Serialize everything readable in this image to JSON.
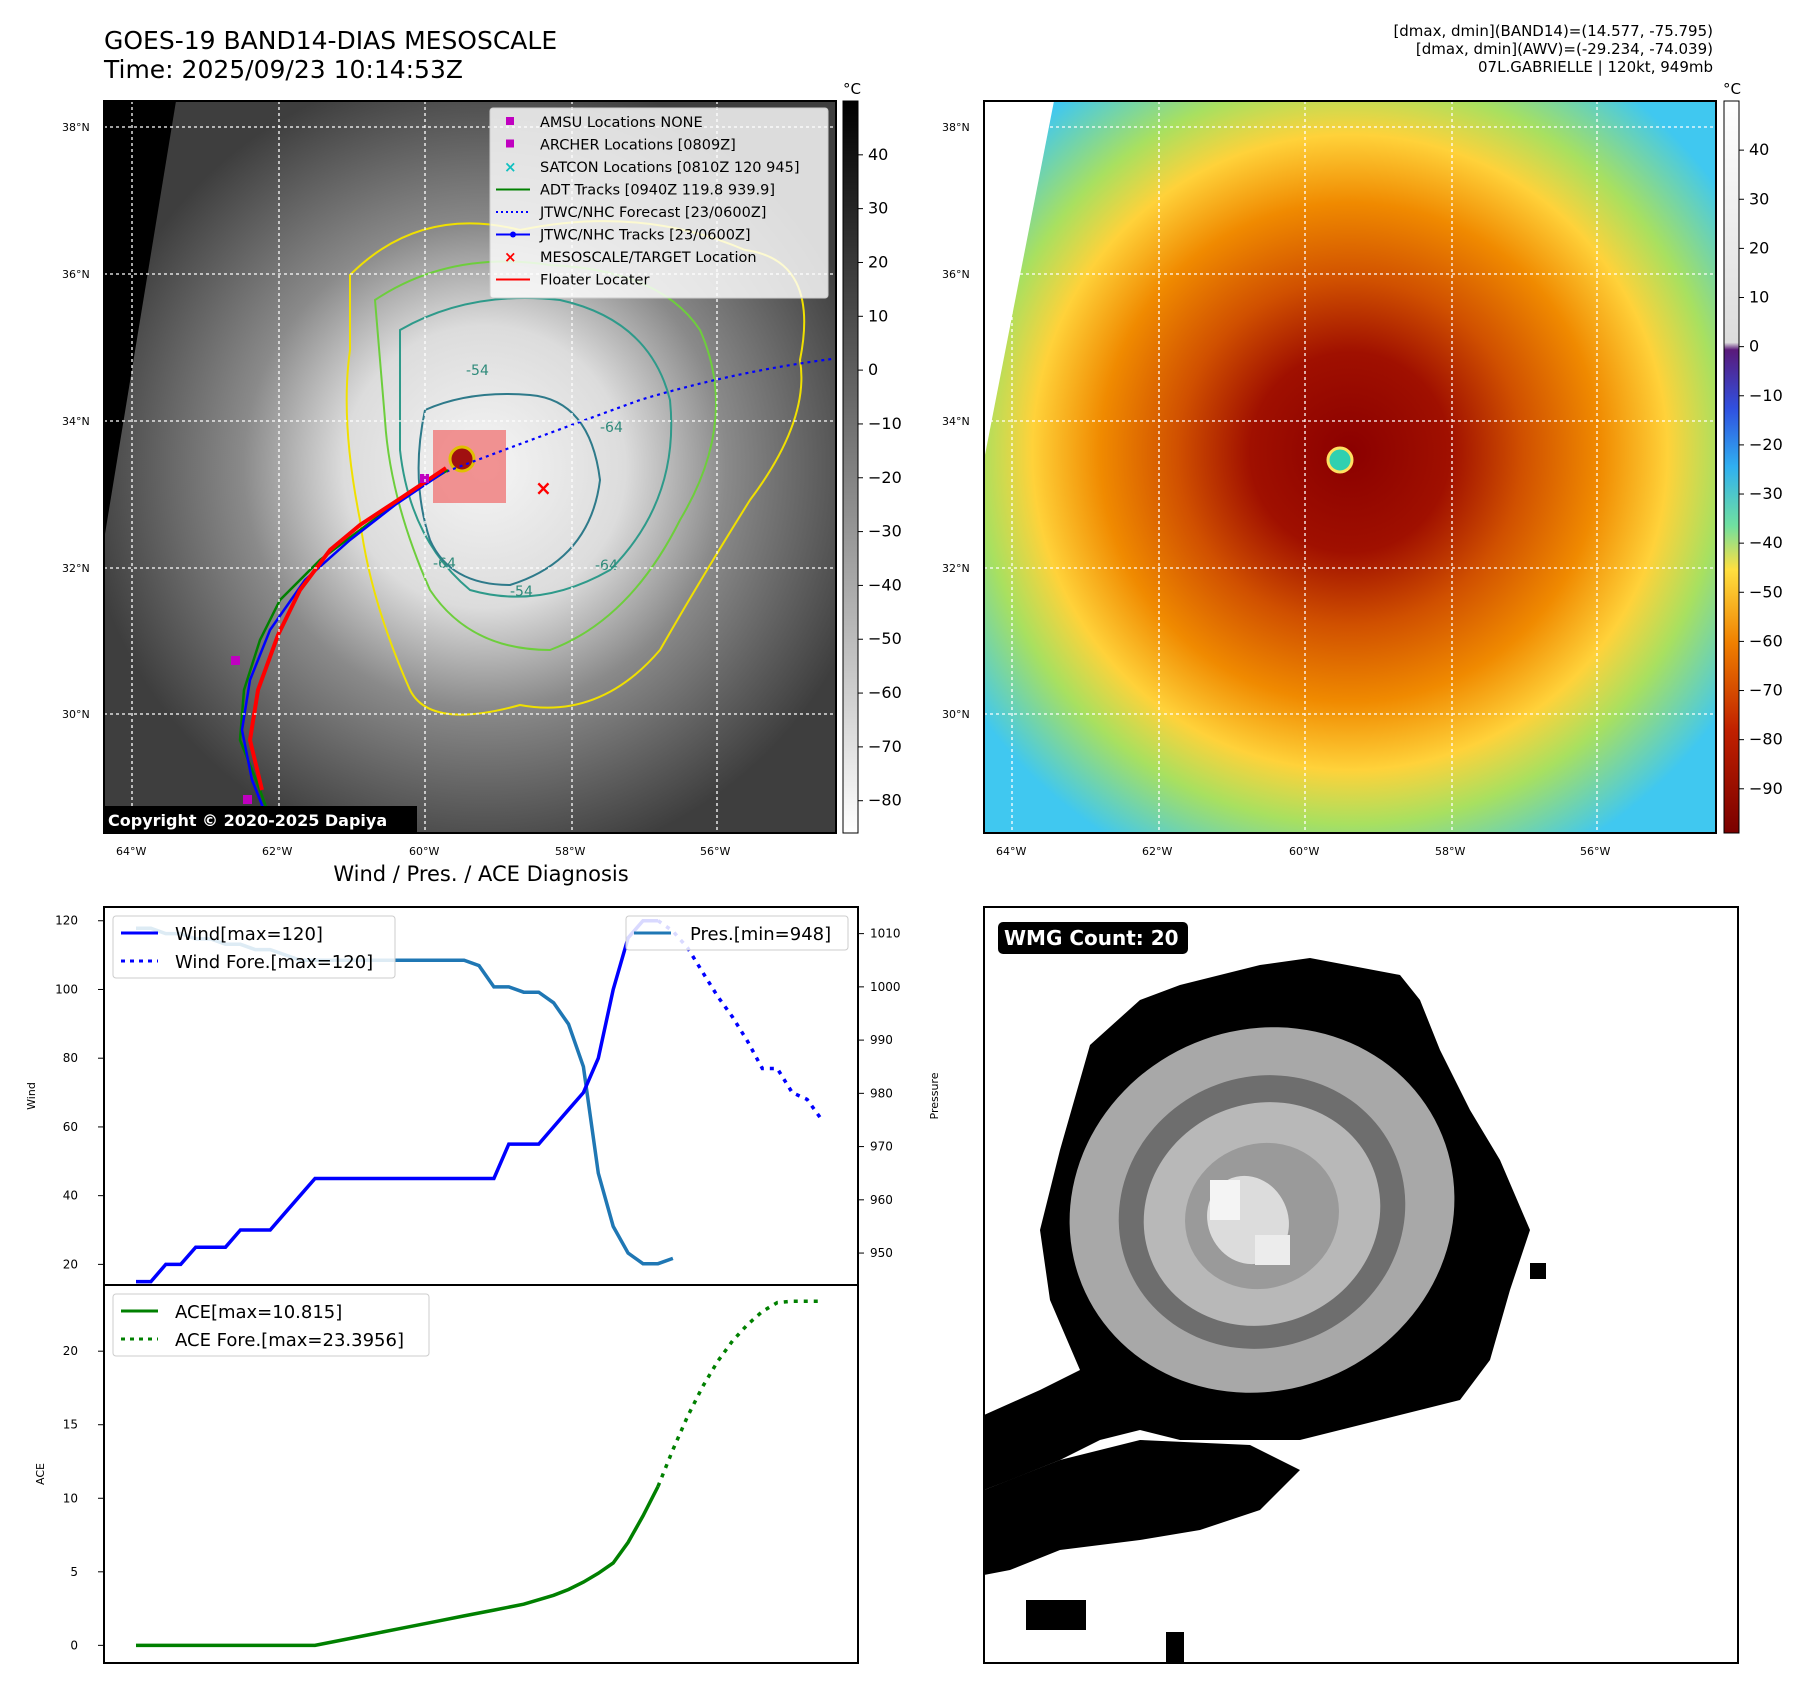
{
  "header": {
    "title_line1": "GOES-19 BAND14-DIAS MESOSCALE",
    "title_line2": "Time: 2025/09/23 10:14:53Z",
    "info_line1": "[dmax, dmin](BAND14)=(14.577, -75.795)",
    "info_line2": "[dmax, dmin](AWV)=(-29.234, -74.039)",
    "info_line3": "07L.GABRIELLE | 120kt, 949mb"
  },
  "maps": {
    "lat_labels": [
      "38°N",
      "36°N",
      "34°N",
      "32°N",
      "30°N"
    ],
    "lon_labels": [
      "64°W",
      "62°W",
      "60°W",
      "58°W",
      "56°W"
    ],
    "contour_labels": [
      "-54",
      "-64",
      "-54",
      "-64",
      "-64"
    ],
    "copyright": "Copyright © 2020-2025 Dapiya",
    "legend": [
      {
        "label": "AMSU Locations NONE",
        "color": "#c000c0",
        "symbol": "square"
      },
      {
        "label": "ARCHER Locations [0809Z]",
        "color": "#c000c0",
        "symbol": "square"
      },
      {
        "label": "SATCON Locations [0810Z 120 945]",
        "color": "#10c0c0",
        "symbol": "x"
      },
      {
        "label": "ADT Tracks [0940Z 119.8 939.9]",
        "color": "#008000",
        "symbol": "line"
      },
      {
        "label": "JTWC/NHC Forecast [23/0600Z]",
        "color": "#0000ff",
        "symbol": "dotted"
      },
      {
        "label": "JTWC/NHC Tracks [23/0600Z]",
        "color": "#0000ff",
        "symbol": "line-dot"
      },
      {
        "label": "MESOSCALE/TARGET Location",
        "color": "#ff0000",
        "symbol": "x"
      },
      {
        "label": "Floater Locater",
        "color": "#ff0000",
        "symbol": "line"
      }
    ],
    "colorbar_left": {
      "unit": "°C",
      "ticks": [
        "40",
        "30",
        "20",
        "10",
        "0",
        "−10",
        "−20",
        "−30",
        "−40",
        "−50",
        "−60",
        "−70",
        "−80"
      ]
    },
    "colorbar_right": {
      "unit": "°C",
      "ticks": [
        "40",
        "30",
        "20",
        "10",
        "0",
        "−10",
        "−20",
        "−30",
        "−40",
        "−50",
        "−60",
        "−70",
        "−80",
        "−90"
      ]
    }
  },
  "diagnosis": {
    "title": "Wind / Pres. / ACE Diagnosis",
    "wind_axis_label": "Wind",
    "pressure_axis_label": "Pressure",
    "ace_axis_label": "ACE",
    "legend_wind": "Wind[max=120]",
    "legend_wind_fore": "Wind Fore.[max=120]",
    "legend_pres": "Pres.[min=948]",
    "legend_ace": "ACE[max=10.815]",
    "legend_ace_fore": "ACE Fore.[max=23.3956]"
  },
  "wmg": {
    "label": "WMG Count: 20"
  },
  "colors": {
    "wind": "#0000ff",
    "pressure": "#1f77b4",
    "ace": "#008000"
  },
  "chart_data": [
    {
      "type": "line",
      "title": "Wind / Pres. / ACE Diagnosis",
      "xlabel": "",
      "ylabel": "Wind",
      "y2label": "Pressure",
      "ylim": [
        14,
        124
      ],
      "y2lim": [
        944,
        1015
      ],
      "x": [
        0,
        1,
        2,
        3,
        4,
        5,
        6,
        7,
        8,
        9,
        10,
        11,
        12,
        13,
        14,
        15,
        16,
        17,
        18,
        19,
        20,
        21,
        22,
        23,
        24,
        25,
        26,
        27,
        28,
        29,
        30,
        31,
        32,
        33,
        34,
        35,
        36,
        37,
        38,
        39,
        40,
        41,
        42,
        43,
        44,
        45,
        46
      ],
      "series": [
        {
          "name": "Wind[max=120]",
          "axis": "left",
          "style": "solid",
          "x": [
            0,
            1,
            2,
            3,
            4,
            5,
            6,
            7,
            8,
            9,
            10,
            11,
            12,
            13,
            14,
            15,
            16,
            17,
            18,
            19,
            20,
            21,
            22,
            23,
            24,
            25,
            26,
            27,
            28,
            29,
            30,
            31,
            32,
            33,
            34,
            35,
            36,
            37,
            38
          ],
          "values": [
            15,
            15,
            20,
            20,
            25,
            25,
            25,
            30,
            30,
            30,
            35,
            40,
            45,
            45,
            45,
            45,
            45,
            45,
            45,
            45,
            45,
            45,
            45,
            45,
            45,
            55,
            55,
            55,
            60,
            65,
            70,
            80,
            100,
            115,
            120,
            120,
            null,
            null,
            null
          ]
        },
        {
          "name": "Wind Fore.[max=120]",
          "axis": "left",
          "style": "dotted",
          "x": [
            35,
            36,
            37,
            38,
            39,
            40,
            41,
            42,
            43,
            44,
            45,
            46
          ],
          "values": [
            120,
            117,
            112,
            105,
            98,
            92,
            85,
            77,
            77,
            70,
            68,
            62
          ]
        },
        {
          "name": "Pres.[min=948]",
          "axis": "right",
          "style": "solid",
          "x": [
            0,
            1,
            2,
            3,
            4,
            5,
            6,
            7,
            8,
            9,
            10,
            11,
            12,
            13,
            14,
            15,
            16,
            17,
            18,
            19,
            20,
            21,
            22,
            23,
            24,
            25,
            26,
            27,
            28,
            29,
            30,
            31,
            32,
            33,
            34,
            35,
            36
          ],
          "values": [
            1011,
            1011,
            1010,
            1010,
            1009,
            1009,
            1008,
            1008,
            1007,
            1007,
            1006,
            1005,
            1005,
            1005,
            1005,
            1005,
            1005,
            1005,
            1005,
            1005,
            1005,
            1005,
            1005,
            1004,
            1000,
            1000,
            999,
            999,
            997,
            993,
            985,
            965,
            955,
            950,
            948,
            948,
            949
          ]
        },
        {
          "name": "ACE[max=10.815]",
          "axis": "ace",
          "style": "solid",
          "x": [
            0,
            2,
            4,
            6,
            8,
            10,
            12,
            14,
            16,
            18,
            20,
            22,
            24,
            26,
            28,
            29,
            30,
            31,
            32,
            33,
            34,
            35
          ],
          "values": [
            0,
            0,
            0,
            0,
            0,
            0,
            0,
            0.4,
            0.8,
            1.2,
            1.6,
            2.0,
            2.4,
            2.8,
            3.4,
            3.8,
            4.3,
            4.9,
            5.6,
            7,
            8.8,
            10.8
          ]
        },
        {
          "name": "ACE Fore.[max=23.3956]",
          "axis": "ace",
          "style": "dotted",
          "x": [
            35,
            36,
            37,
            38,
            39,
            40,
            41,
            42,
            43,
            44,
            45,
            46
          ],
          "values": [
            10.8,
            13.3,
            15.6,
            17.6,
            19.3,
            20.7,
            21.8,
            22.7,
            23.3,
            23.4,
            23.4,
            23.4
          ]
        }
      ],
      "ace_ylim": [
        -1.2,
        24.5
      ],
      "wind_ticks": [
        20,
        40,
        60,
        80,
        100,
        120
      ],
      "pressure_ticks": [
        950,
        960,
        970,
        980,
        990,
        1000,
        1010
      ],
      "ace_ticks": [
        0,
        5,
        10,
        15,
        20
      ]
    }
  ]
}
